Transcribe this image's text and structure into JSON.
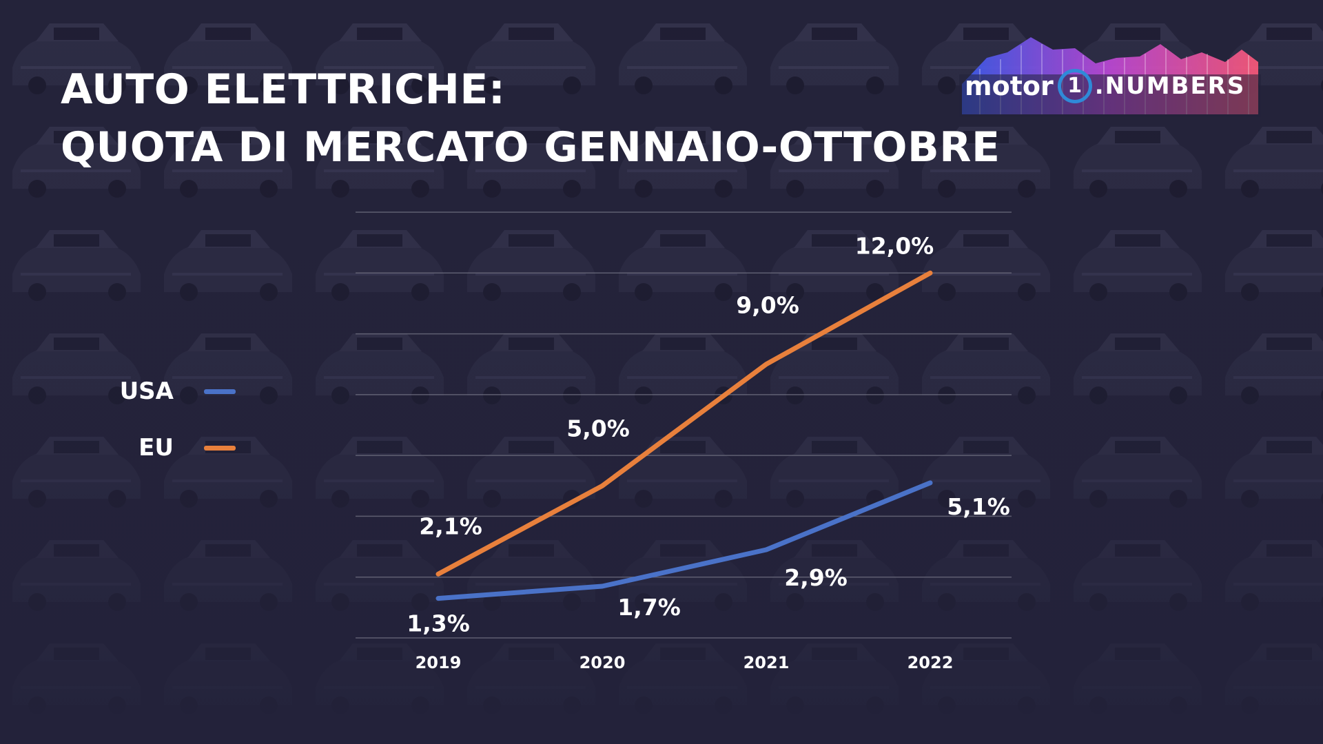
{
  "header": {
    "title_line1": "AUTO ELETTRICHE:",
    "title_line2": "QUOTA DI MERCATO GENNAIO-OTTOBRE"
  },
  "logo": {
    "word": "motor",
    "one": "1",
    "suffix": ".NUMBERS"
  },
  "colors": {
    "background": "#23223a",
    "usa": "#4a72c8",
    "eu": "#e8803c",
    "grid": "#6e6e80"
  },
  "chart_data": {
    "type": "line",
    "categories": [
      "2019",
      "2020",
      "2021",
      "2022"
    ],
    "series": [
      {
        "name": "USA",
        "key": "usa",
        "values": [
          1.3,
          1.7,
          2.9,
          5.1
        ],
        "labels": [
          "1,3%",
          "1,7%",
          "2,9%",
          "5,1%"
        ]
      },
      {
        "name": "EU",
        "key": "eu",
        "values": [
          2.1,
          5.0,
          9.0,
          12.0
        ],
        "labels": [
          "2,1%",
          "5,0%",
          "9,0%",
          "12,0%"
        ]
      }
    ],
    "ylim": [
      0,
      14
    ],
    "grid": true,
    "legend": "left"
  }
}
